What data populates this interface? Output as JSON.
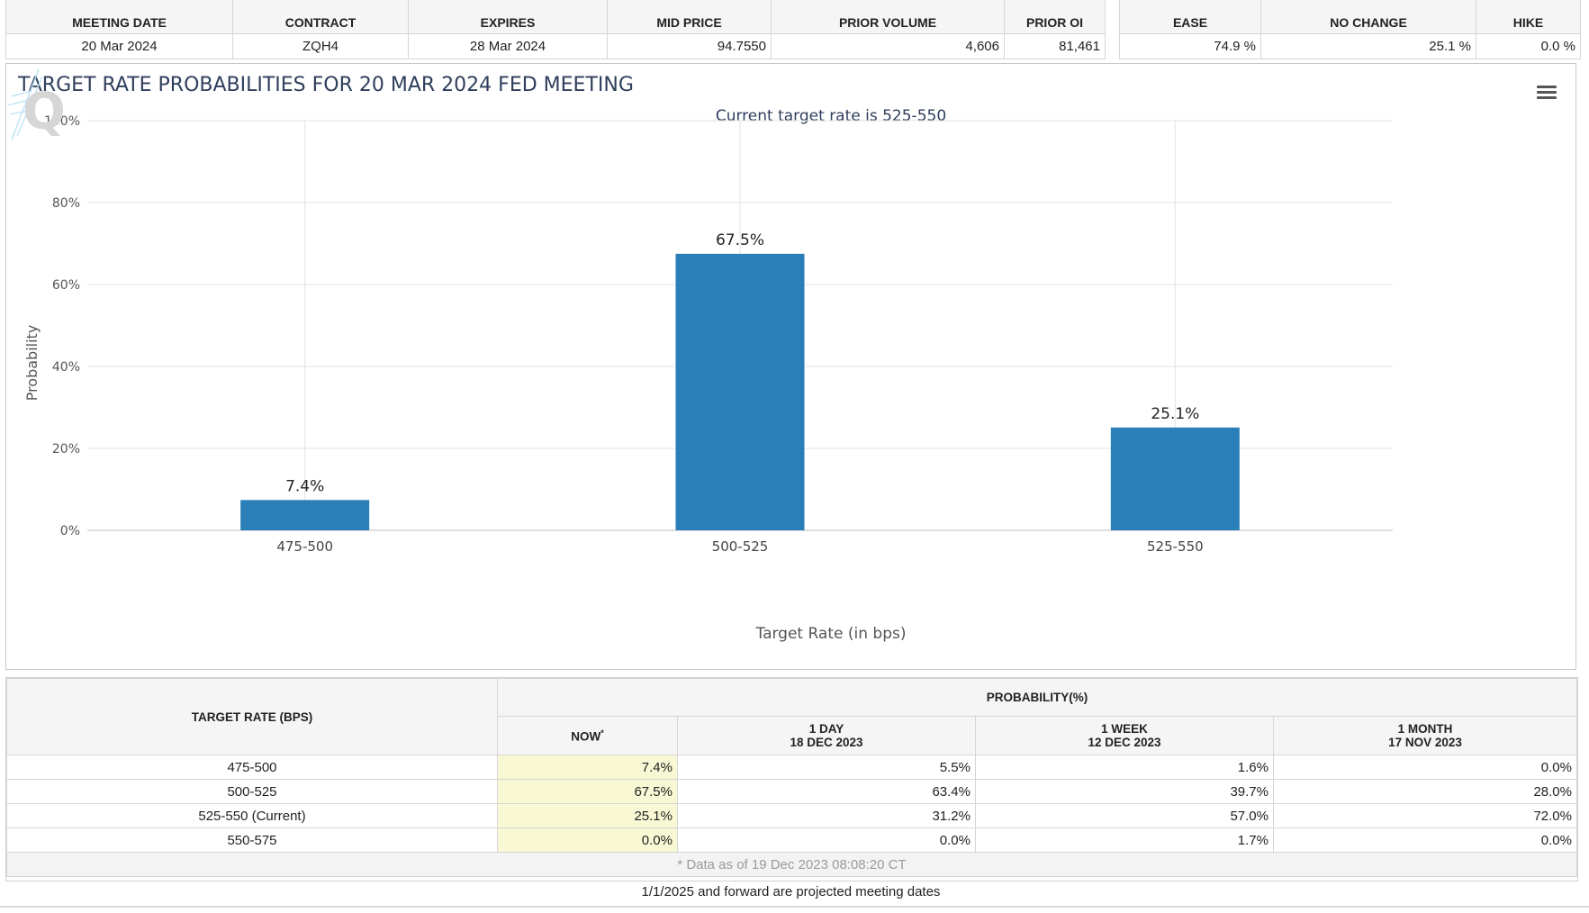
{
  "meeting_table": {
    "headers": [
      "MEETING DATE",
      "CONTRACT",
      "EXPIRES",
      "MID PRICE",
      "PRIOR VOLUME",
      "PRIOR OI"
    ],
    "row": [
      "20 Mar 2024",
      "ZQH4",
      "28 Mar 2024",
      "94.7550",
      "4,606",
      "81,461"
    ]
  },
  "outlook_table": {
    "headers": [
      "EASE",
      "NO CHANGE",
      "HIKE"
    ],
    "row": [
      "74.9 %",
      "25.1 %",
      "0.0 %"
    ]
  },
  "chart": {
    "title": "TARGET RATE PROBABILITIES FOR 20 MAR 2024 FED MEETING",
    "subtitle": "Current target rate is 525-550",
    "menu_icon": "hamburger-menu-icon",
    "logo_icon": "q-logo-icon"
  },
  "chart_data": {
    "type": "bar",
    "title": "TARGET RATE PROBABILITIES FOR 20 MAR 2024 FED MEETING",
    "subtitle": "Current target rate is 525-550",
    "categories": [
      "475-500",
      "500-525",
      "525-550"
    ],
    "values": [
      7.4,
      67.5,
      25.1
    ],
    "data_labels": [
      "7.4%",
      "67.5%",
      "25.1%"
    ],
    "xlabel": "Target Rate (in bps)",
    "ylabel": "Probability",
    "ylim": [
      0,
      100
    ],
    "y_ticks": [
      0,
      20,
      40,
      60,
      80,
      100
    ],
    "y_tick_labels": [
      "0%",
      "20%",
      "40%",
      "60%",
      "80%",
      "100%"
    ],
    "grid": true,
    "bar_color": "#2b7fb8"
  },
  "prob_table": {
    "rate_header": "TARGET RATE (BPS)",
    "group_header": "PROBABILITY(%)",
    "col_now": "NOW",
    "col_now_mark": "*",
    "cols": [
      {
        "line1": "1 DAY",
        "line2": "18 DEC 2023"
      },
      {
        "line1": "1 WEEK",
        "line2": "12 DEC 2023"
      },
      {
        "line1": "1 MONTH",
        "line2": "17 NOV 2023"
      }
    ],
    "rows": [
      {
        "rate": "475-500",
        "now": "7.4%",
        "day": "5.5%",
        "week": "1.6%",
        "month": "0.0%"
      },
      {
        "rate": "500-525",
        "now": "67.5%",
        "day": "63.4%",
        "week": "39.7%",
        "month": "28.0%"
      },
      {
        "rate": "525-550 (Current)",
        "now": "25.1%",
        "day": "31.2%",
        "week": "57.0%",
        "month": "72.0%"
      },
      {
        "rate": "550-575",
        "now": "0.0%",
        "day": "0.0%",
        "week": "1.7%",
        "month": "0.0%"
      }
    ],
    "note": "* Data as of 19 Dec 2023 08:08:20 CT"
  },
  "footer_note": "1/1/2025 and forward are projected meeting dates",
  "colors": {
    "title": "#2f3e5c",
    "bar": "#2b7fb8",
    "now_highlight": "#f8f8d5",
    "header_bg": "#f5f5f5"
  }
}
